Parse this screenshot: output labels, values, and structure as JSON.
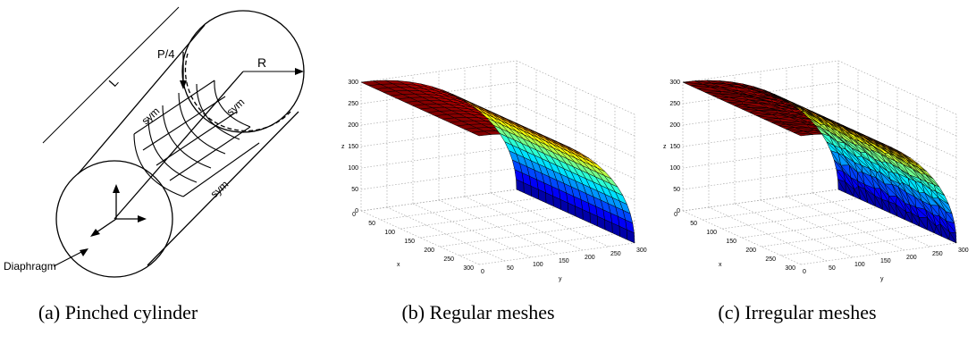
{
  "figure_a": {
    "caption": "(a) Pinched cylinder",
    "labels": {
      "length": "L",
      "load": "P/4",
      "radius": "R",
      "sym": "sym",
      "diaphragm": "Diaphragm"
    }
  },
  "figure_b": {
    "caption": "(b) Regular meshes",
    "x_ticks": [
      "0",
      "50",
      "100",
      "150",
      "200",
      "250",
      "300"
    ],
    "y_ticks": [
      "0",
      "50",
      "100",
      "150",
      "200",
      "250",
      "300"
    ],
    "z_ticks": [
      "0",
      "50",
      "100",
      "150",
      "200",
      "250",
      "300"
    ],
    "xlabel": "x",
    "ylabel": "y",
    "zlabel": "z"
  },
  "figure_c": {
    "caption": "(c) Irregular meshes",
    "x_ticks": [
      "0",
      "50",
      "100",
      "150",
      "200",
      "250",
      "300"
    ],
    "y_ticks": [
      "0",
      "50",
      "100",
      "150",
      "200",
      "250",
      "300"
    ],
    "z_ticks": [
      "0",
      "50",
      "100",
      "150",
      "200",
      "250",
      "300"
    ],
    "xlabel": "x",
    "ylabel": "y",
    "zlabel": "z"
  },
  "colors": {
    "line": "#000000",
    "grid": "#9a9a9a"
  }
}
